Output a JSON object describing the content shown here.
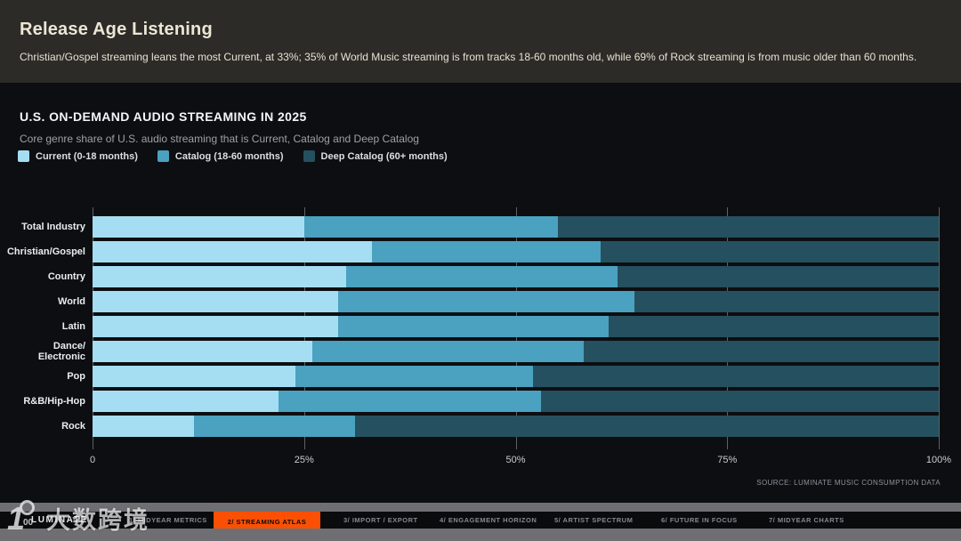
{
  "header": {
    "title": "Release Age Listening",
    "subtitle": "Christian/Gospel streaming leans the most Current, at 33%; 35% of World Music streaming is from tracks 18-60 months old, while 69% of Rock streaming is from music older than 60 months."
  },
  "chart_data": {
    "type": "bar",
    "orientation": "horizontal",
    "stacked": true,
    "title": "U.S. ON-DEMAND AUDIO STREAMING IN 2025",
    "subtitle": "Core genre share of U.S. audio streaming that is Current, Catalog and Deep Catalog",
    "categories": [
      "Total Industry",
      "Christian/Gospel",
      "Country",
      "World",
      "Latin",
      "Dance/\nElectronic",
      "Pop",
      "R&B/Hip-Hop",
      "Rock"
    ],
    "series": [
      {
        "name": "Current (0-18 months)",
        "color": "#a5def2",
        "values": [
          25,
          33,
          30,
          29,
          29,
          26,
          24,
          22,
          12
        ]
      },
      {
        "name": "Catalog (18-60 months)",
        "color": "#4aa1c0",
        "values": [
          30,
          27,
          32,
          35,
          32,
          32,
          28,
          31,
          19
        ]
      },
      {
        "name": "Deep Catalog (60+ months)",
        "color": "#25505f",
        "values": [
          45,
          40,
          38,
          36,
          39,
          42,
          48,
          47,
          69
        ]
      }
    ],
    "xlim": [
      0,
      100
    ],
    "x_ticks": [
      "0",
      "25%",
      "50%",
      "75%",
      "100%"
    ],
    "unit": "percent",
    "grid": "vertical",
    "legend_position": "top-left"
  },
  "source": "SOURCE: LUMINATE MUSIC CONSUMPTION DATA",
  "footer_nav": {
    "brand": "LUMINATE",
    "active_color": "#fb5004",
    "tabs": [
      {
        "label": "1/ MIDYEAR METRICS",
        "active": false
      },
      {
        "label": "2/ STREAMING ATLAS",
        "active": true
      },
      {
        "label": "3/ IMPORT / EXPORT",
        "active": false
      },
      {
        "label": "4/ ENGAGEMENT HORIZON",
        "active": false
      },
      {
        "label": "5/ ARTIST SPECTRUM",
        "active": false
      },
      {
        "label": "6/ FUTURE IN FOCUS",
        "active": false
      },
      {
        "label": "7/ MIDYEAR CHARTS",
        "active": false
      }
    ]
  },
  "watermark": {
    "icon": "100-circle-logo",
    "text": "大数跨境"
  },
  "colors": {
    "header_bg": "#2c2b28",
    "panel_bg": "#0d0e11",
    "header_text": "#ece6d4",
    "gray_strip": "#6f6f73",
    "navbar_bg": "#0a0b0d",
    "gridline": "#5d6167"
  }
}
